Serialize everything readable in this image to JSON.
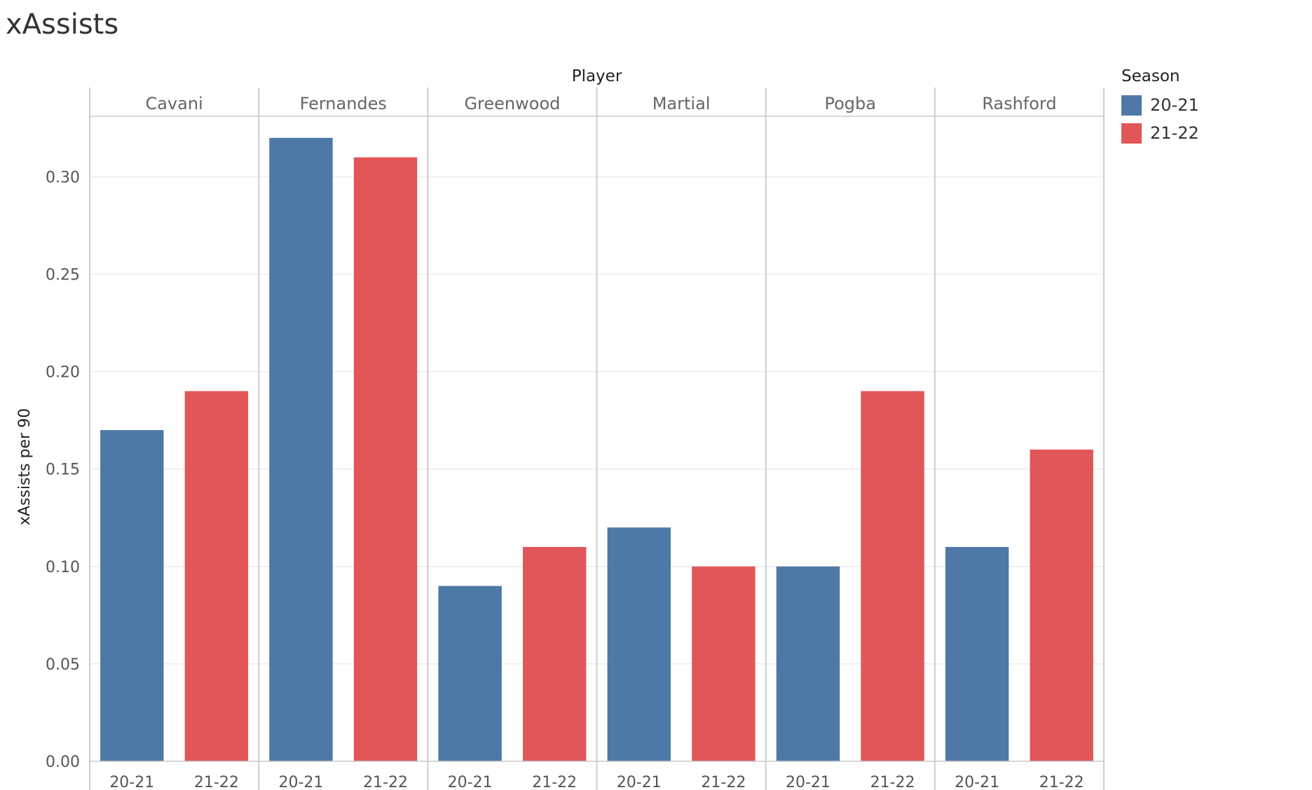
{
  "title": "xAssists",
  "legend": {
    "title": "Season",
    "items": [
      {
        "label": "20-21",
        "color": "#4E79A7"
      },
      {
        "label": "21-22",
        "color": "#E15759"
      }
    ]
  },
  "chart_data": {
    "type": "bar",
    "column_header": "Player",
    "ylabel": "xAssists per 90",
    "ylim": [
      0,
      0.33
    ],
    "yticks": [
      "0.00",
      "0.05",
      "0.10",
      "0.15",
      "0.20",
      "0.25",
      "0.30"
    ],
    "grid": true,
    "categories": [
      "Cavani",
      "Fernandes",
      "Greenwood",
      "Martial",
      "Pogba",
      "Rashford"
    ],
    "subcategories": [
      "20-21",
      "21-22"
    ],
    "series": [
      {
        "name": "20-21",
        "color": "#4E79A7",
        "values": [
          0.17,
          0.32,
          0.09,
          0.12,
          0.1,
          0.11
        ]
      },
      {
        "name": "21-22",
        "color": "#E15759",
        "values": [
          0.19,
          0.31,
          0.11,
          0.1,
          0.19,
          0.16
        ]
      }
    ]
  }
}
